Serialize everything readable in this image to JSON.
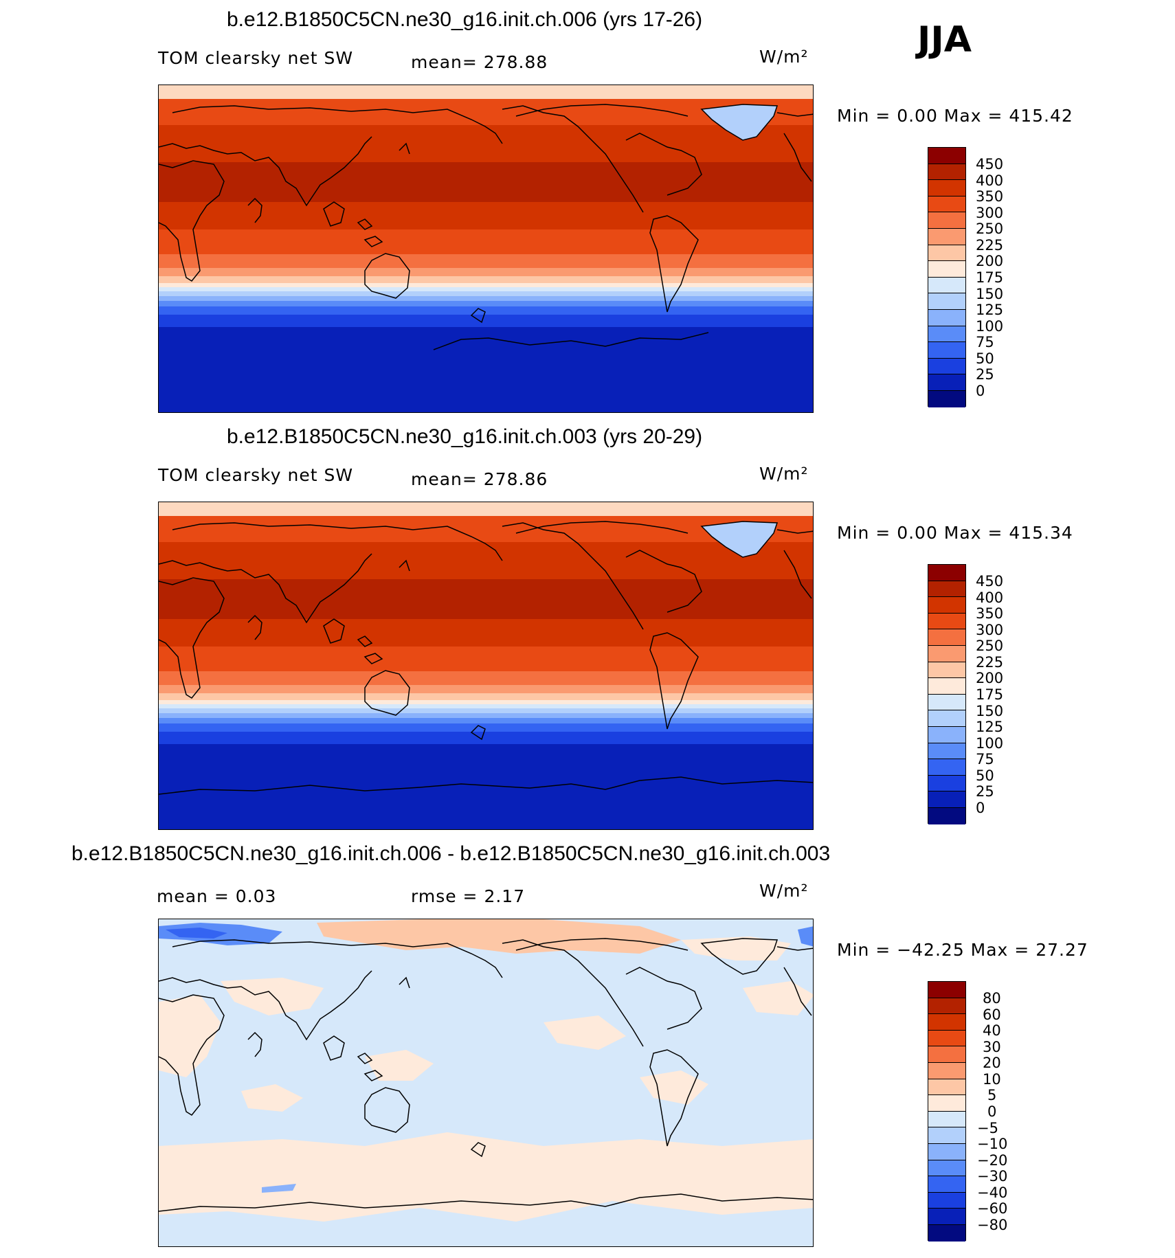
{
  "season": "JJA",
  "panels": [
    {
      "title": "b.e12.B1850C5CN.ne30_g16.init.ch.006 (yrs 17-26)",
      "variable": "TOM clearsky net SW",
      "stat1": "mean=  278.88",
      "stat2": "",
      "units": "W/m²",
      "minmax": "Min =     0.00  Max  =  415.42",
      "cbar_labels": [
        "450",
        "400",
        "350",
        "300",
        "250",
        "225",
        "200",
        "175",
        "150",
        "125",
        "100",
        "75",
        "50",
        "25",
        "0"
      ],
      "cbar_colors": [
        "#8c0000",
        "#b32200",
        "#d23400",
        "#e84a14",
        "#f47040",
        "#fa9a70",
        "#fdc7a6",
        "#feeadb",
        "#d6e8fa",
        "#b2d0fb",
        "#8ab2fb",
        "#5a8cf8",
        "#3464f2",
        "#1a40e0",
        "#0820b8",
        "#020a80"
      ]
    },
    {
      "title": "b.e12.B1850C5CN.ne30_g16.init.ch.003 (yrs 20-29)",
      "variable": "TOM clearsky net SW",
      "stat1": "mean=  278.86",
      "stat2": "",
      "units": "W/m²",
      "minmax": "Min =     0.00  Max  =  415.34",
      "cbar_labels": [
        "450",
        "400",
        "350",
        "300",
        "250",
        "225",
        "200",
        "175",
        "150",
        "125",
        "100",
        "75",
        "50",
        "25",
        "0"
      ],
      "cbar_colors": [
        "#8c0000",
        "#b32200",
        "#d23400",
        "#e84a14",
        "#f47040",
        "#fa9a70",
        "#fdc7a6",
        "#feeadb",
        "#d6e8fa",
        "#b2d0fb",
        "#8ab2fb",
        "#5a8cf8",
        "#3464f2",
        "#1a40e0",
        "#0820b8",
        "#020a80"
      ]
    },
    {
      "title": "b.e12.B1850C5CN.ne30_g16.init.ch.006 - b.e12.B1850C5CN.ne30_g16.init.ch.003",
      "variable": "",
      "stat1": "mean =     0.03",
      "stat2": "rmse =     2.17",
      "units": "W/m²",
      "minmax": "Min  = −42.25  Max  =    27.27",
      "cbar_labels": [
        "80",
        "60",
        "40",
        "30",
        "20",
        "10",
        "5",
        "0",
        "−5",
        "−10",
        "−20",
        "−30",
        "−40",
        "−60",
        "−80"
      ],
      "cbar_colors": [
        "#8c0000",
        "#b32200",
        "#d23400",
        "#e84a14",
        "#f47040",
        "#fa9a70",
        "#fdc7a6",
        "#feeadb",
        "#d6e8fa",
        "#b2d0fb",
        "#8ab2fb",
        "#5a8cf8",
        "#3464f2",
        "#1a40e0",
        "#0820b8",
        "#020a80"
      ]
    }
  ]
}
